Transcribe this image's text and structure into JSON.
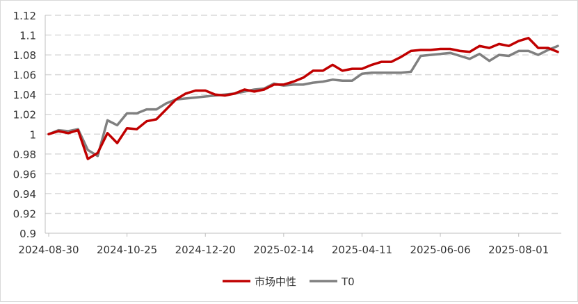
{
  "chart_data": {
    "type": "line",
    "title": "",
    "xlabel": "",
    "ylabel": "",
    "ylim": [
      0.9,
      1.12
    ],
    "y_ticks": [
      "0.9",
      "0.92",
      "0.94",
      "0.96",
      "0.98",
      "1",
      "1.02",
      "1.04",
      "1.06",
      "1.08",
      "1.1",
      "1.12"
    ],
    "x_tick_labels": [
      "2024-08-30",
      "2024-10-25",
      "2024-12-20",
      "2025-02-14",
      "2025-04-11",
      "2025-06-06",
      "2025-08-01"
    ],
    "x_tick_indices": [
      0,
      8,
      16,
      24,
      32,
      40,
      48
    ],
    "grid": "horizontal dashed",
    "legend_position": "bottom-center",
    "series": [
      {
        "name": "市场中性",
        "color": "#c00000",
        "values": [
          1.0,
          1.003,
          1.001,
          1.004,
          0.975,
          0.981,
          1.001,
          0.991,
          1.006,
          1.005,
          1.013,
          1.015,
          1.025,
          1.035,
          1.041,
          1.044,
          1.044,
          1.04,
          1.039,
          1.041,
          1.045,
          1.043,
          1.045,
          1.05,
          1.05,
          1.053,
          1.057,
          1.064,
          1.064,
          1.07,
          1.064,
          1.066,
          1.066,
          1.07,
          1.073,
          1.073,
          1.078,
          1.084,
          1.085,
          1.085,
          1.086,
          1.086,
          1.084,
          1.083,
          1.089,
          1.087,
          1.091,
          1.089,
          1.094,
          1.097,
          1.087,
          1.087,
          1.083
        ]
      },
      {
        "name": "T0",
        "color": "#808080",
        "values": [
          1.0,
          1.004,
          1.003,
          1.005,
          0.984,
          0.978,
          1.014,
          1.009,
          1.021,
          1.021,
          1.025,
          1.025,
          1.031,
          1.035,
          1.036,
          1.037,
          1.038,
          1.039,
          1.04,
          1.041,
          1.043,
          1.045,
          1.046,
          1.051,
          1.049,
          1.05,
          1.05,
          1.052,
          1.053,
          1.055,
          1.054,
          1.054,
          1.061,
          1.062,
          1.062,
          1.062,
          1.062,
          1.063,
          1.079,
          1.08,
          1.081,
          1.082,
          1.079,
          1.076,
          1.081,
          1.074,
          1.08,
          1.079,
          1.084,
          1.084,
          1.08,
          1.085,
          1.089
        ]
      }
    ]
  }
}
